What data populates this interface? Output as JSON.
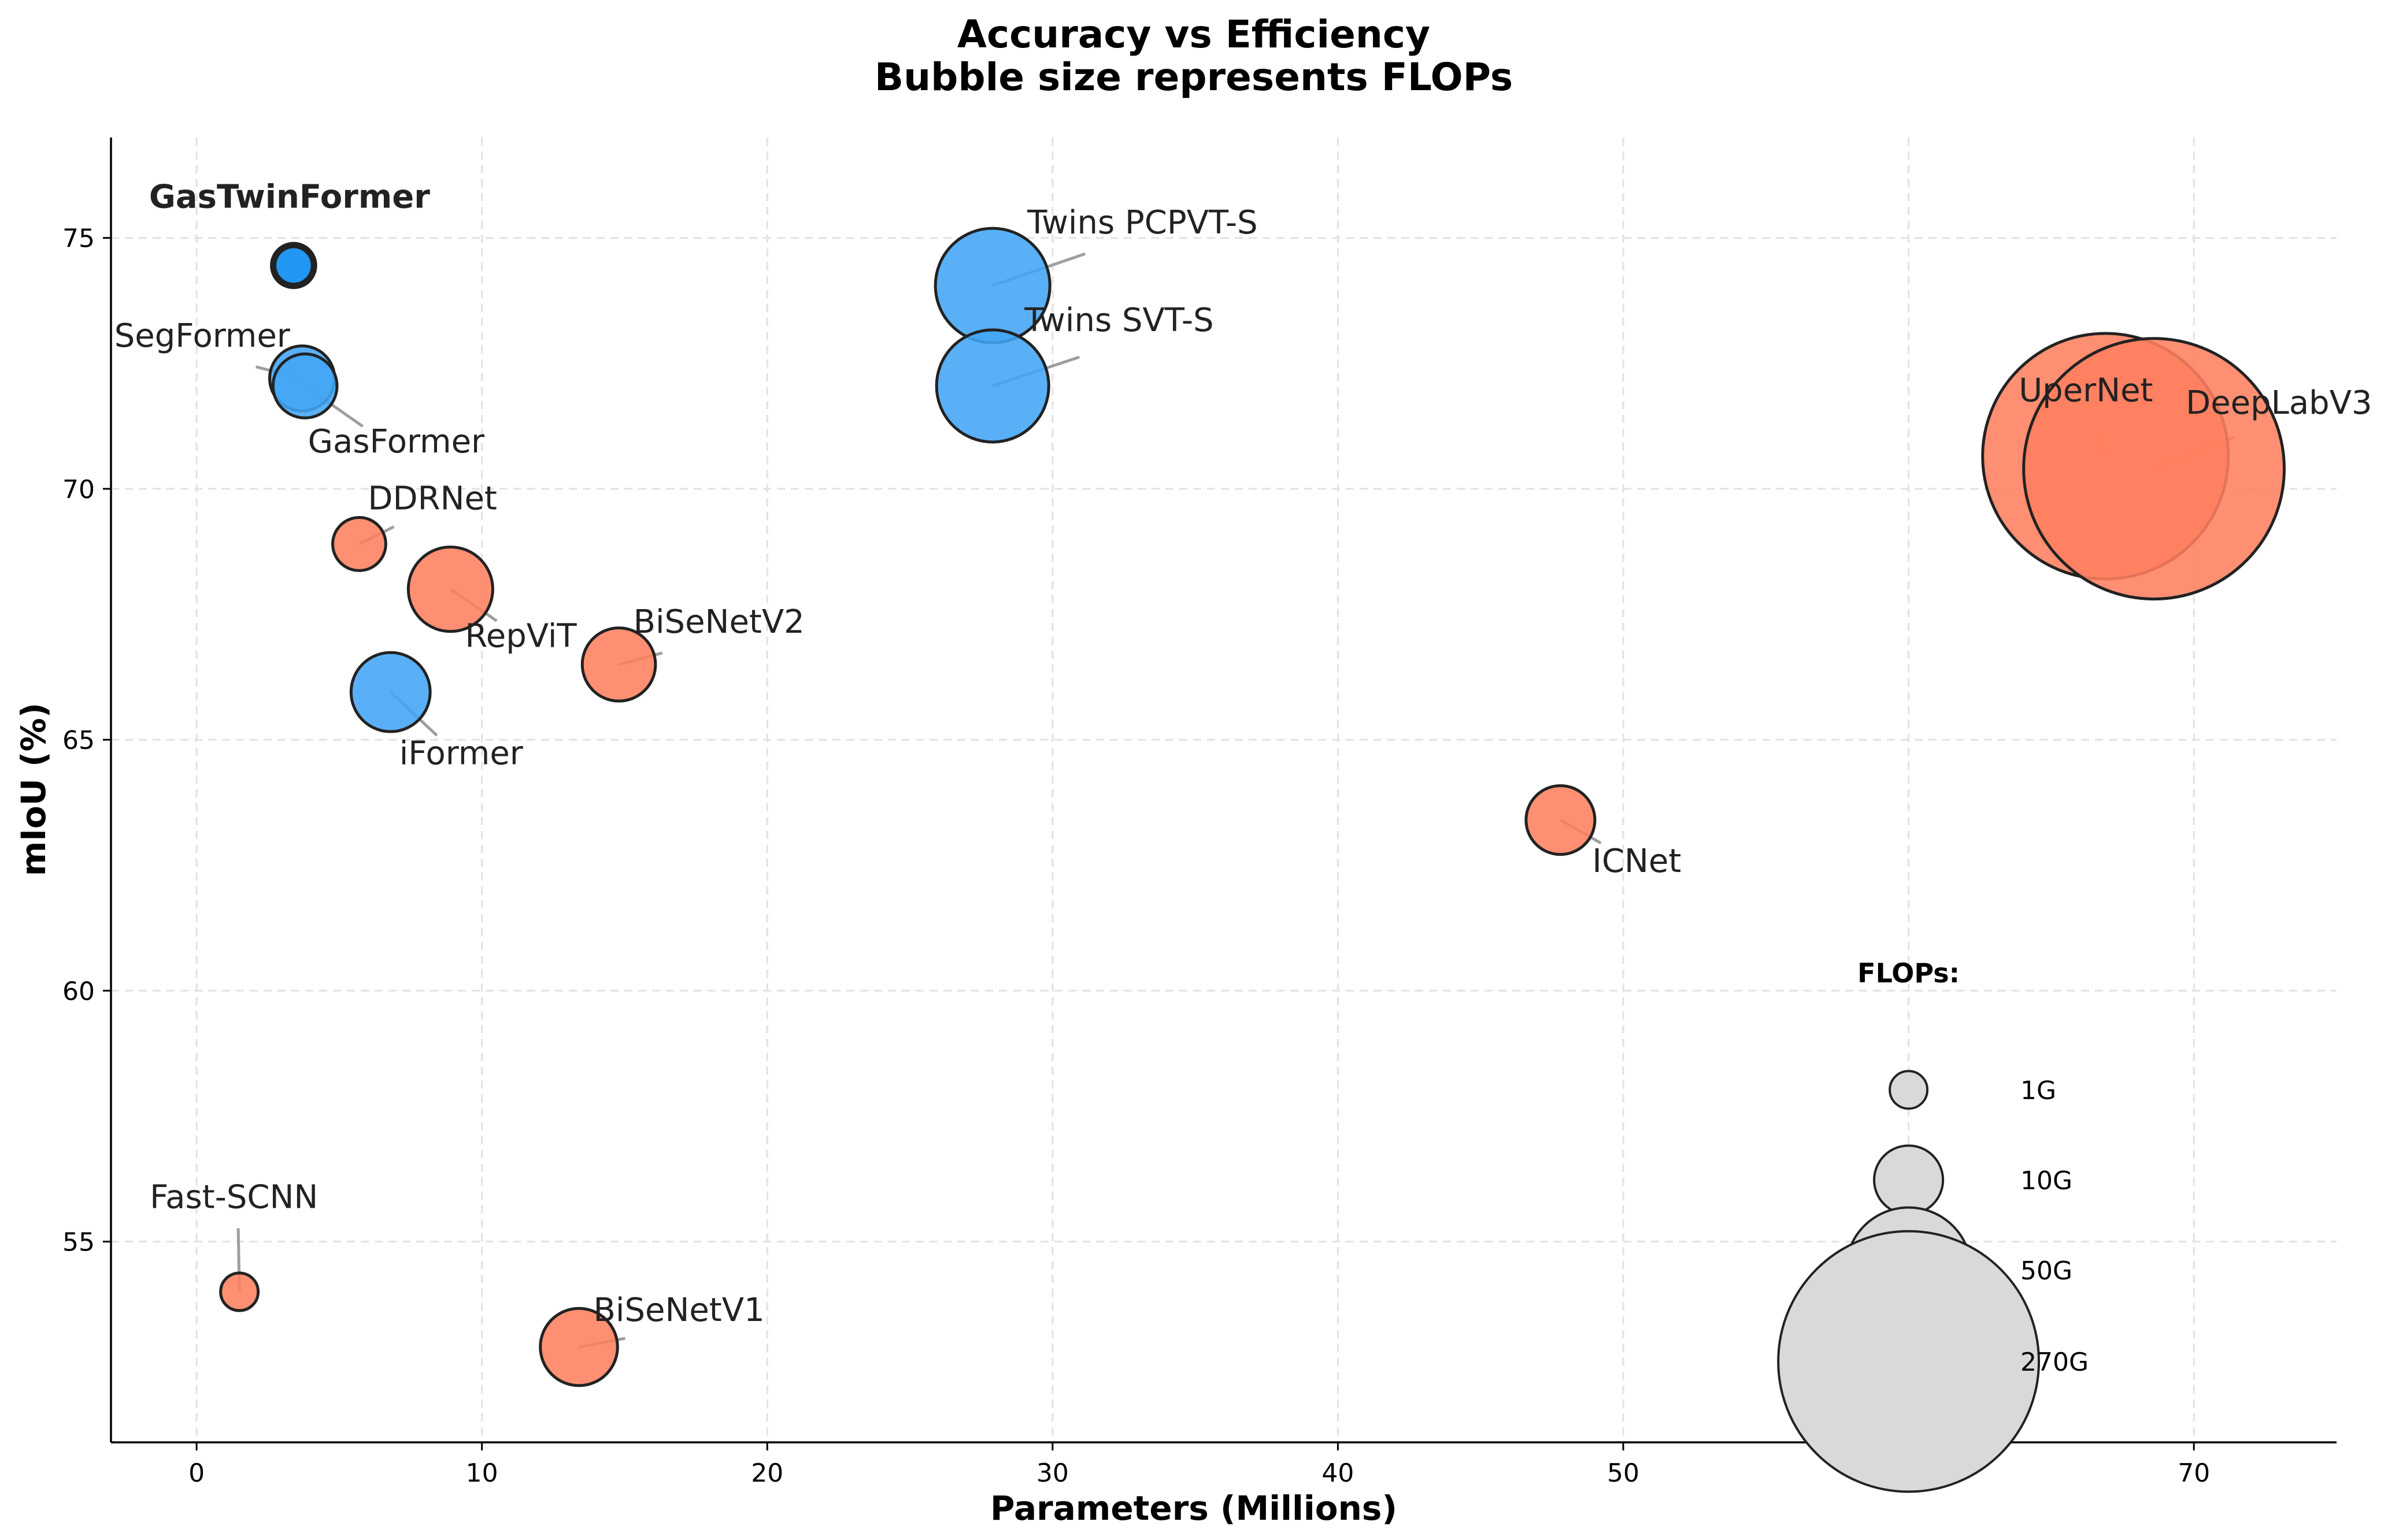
{
  "chart_data": {
    "type": "scatter",
    "subtype": "bubble",
    "title": "Accuracy vs Efficiency",
    "subtitle": "Bubble size represents FLOPs",
    "xlabel": "Parameters (Millions)",
    "ylabel": "mIoU (%)",
    "xlim": [
      -3,
      75
    ],
    "ylim": [
      51,
      77
    ],
    "xticks": [
      0,
      10,
      20,
      30,
      40,
      50,
      60,
      70
    ],
    "yticks": [
      55,
      60,
      65,
      70,
      75
    ],
    "grid": true,
    "grid_style": "dashed",
    "colors": {
      "transformer": "#42a5f5",
      "cnn": "#ff7f5e",
      "highlight": "#2196f3",
      "edge": "#222222",
      "legend_bubble": "#d9d9d9",
      "leader": "#9e9e9e",
      "grid": "#e2e2e2"
    },
    "points": [
      {
        "name": "GasTwinFormer",
        "x": 3.4,
        "y": 74.45,
        "flops": 1.5,
        "group": "highlight",
        "bold": true
      },
      {
        "name": "SegFormer",
        "x": 3.7,
        "y": 72.2,
        "flops": 8.4,
        "group": "transformer"
      },
      {
        "name": "GasFormer",
        "x": 3.8,
        "y": 72.05,
        "flops": 8.0,
        "group": "transformer"
      },
      {
        "name": "DDRNet",
        "x": 5.7,
        "y": 68.9,
        "flops": 4.3,
        "group": "cnn"
      },
      {
        "name": "RepViT",
        "x": 8.9,
        "y": 68.0,
        "flops": 18.0,
        "group": "cnn"
      },
      {
        "name": "BiSeNetV2",
        "x": 14.8,
        "y": 66.5,
        "flops": 12.0,
        "group": "cnn"
      },
      {
        "name": "iFormer",
        "x": 6.8,
        "y": 65.95,
        "flops": 15.0,
        "group": "transformer"
      },
      {
        "name": "Twins PCPVT-S",
        "x": 27.9,
        "y": 74.05,
        "flops": 40.0,
        "group": "transformer"
      },
      {
        "name": "Twins SVT-S",
        "x": 27.9,
        "y": 72.05,
        "flops": 38.0,
        "group": "transformer"
      },
      {
        "name": "UperNet",
        "x": 66.9,
        "y": 70.65,
        "flops": 237.0,
        "group": "cnn"
      },
      {
        "name": "DeepLabV3",
        "x": 68.6,
        "y": 70.4,
        "flops": 270.0,
        "group": "cnn"
      },
      {
        "name": "ICNet",
        "x": 47.8,
        "y": 63.4,
        "flops": 10.0,
        "group": "cnn"
      },
      {
        "name": "Fast-SCNN",
        "x": 1.5,
        "y": 54.0,
        "flops": 1.0,
        "group": "cnn"
      },
      {
        "name": "BiSeNetV1",
        "x": 13.4,
        "y": 52.9,
        "flops": 14.0,
        "group": "cnn"
      }
    ],
    "legend": {
      "title": "FLOPs:",
      "position": "bottom-right",
      "entries": [
        {
          "label": "1G",
          "flops": 1
        },
        {
          "label": "10G",
          "flops": 10
        },
        {
          "label": "50G",
          "flops": 50
        },
        {
          "label": "270G",
          "flops": 270
        }
      ]
    }
  }
}
